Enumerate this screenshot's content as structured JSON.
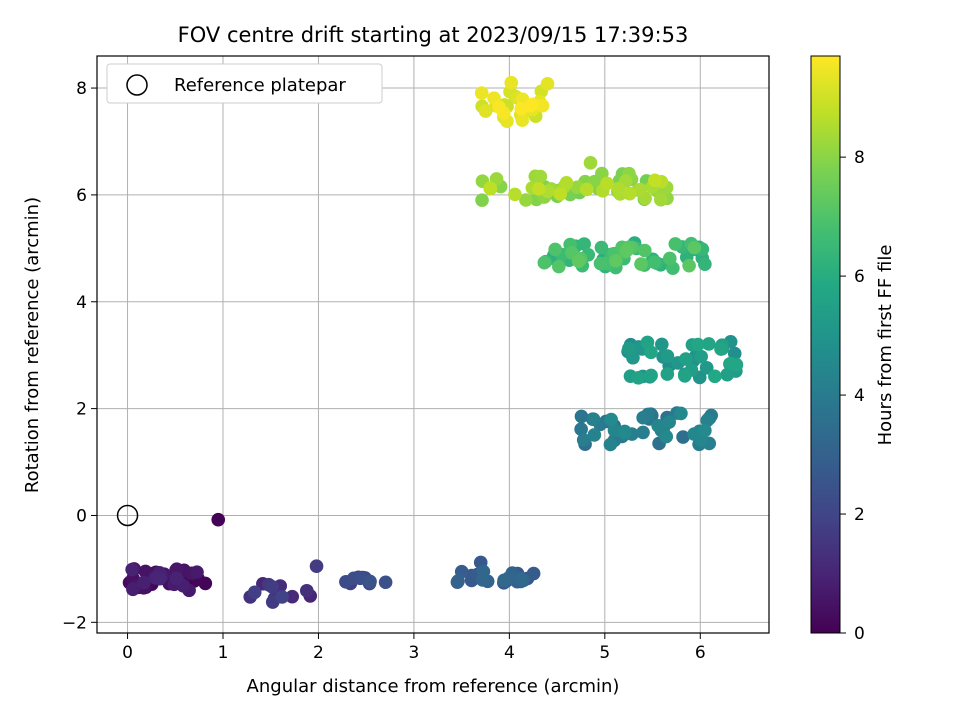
{
  "chart_data": {
    "type": "scatter",
    "title": "FOV centre drift starting at 2023/09/15 17:39:53",
    "xlabel": "Angular distance from reference (arcmin)",
    "ylabel": "Rotation from reference (arcmin)",
    "xlim": [
      -0.32,
      6.72
    ],
    "ylim": [
      -2.2,
      8.6
    ],
    "xticks": [
      0,
      1,
      2,
      3,
      4,
      5,
      6
    ],
    "yticks": [
      -2,
      0,
      2,
      4,
      6,
      8
    ],
    "grid": true,
    "legend": {
      "position": "top-left",
      "entries": [
        "Reference platepar"
      ]
    },
    "reference_point": {
      "x": 0,
      "y": 0,
      "label": "Reference platepar"
    },
    "colorbar": {
      "label": "Hours from first FF file",
      "colormap": "viridis",
      "range": [
        0,
        9.7
      ],
      "ticks": [
        0,
        2,
        4,
        6,
        8
      ]
    },
    "clusters": [
      {
        "x_center": 0.45,
        "y_center": -1.2,
        "x_spread": 0.45,
        "y_spread": 0.22,
        "hour_start": 0.0,
        "hour_end": 1.0,
        "n": 38
      },
      {
        "x_center": 1.6,
        "y_center": -1.45,
        "x_spread": 0.4,
        "y_spread": 0.18,
        "hour_start": 1.0,
        "hour_end": 1.9,
        "n": 12
      },
      {
        "x_center": 2.6,
        "y_center": -1.22,
        "x_spread": 0.35,
        "y_spread": 0.08,
        "hour_start": 1.8,
        "hour_end": 2.5,
        "n": 10
      },
      {
        "x_center": 3.9,
        "y_center": -1.15,
        "x_spread": 0.5,
        "y_spread": 0.12,
        "hour_start": 2.6,
        "hour_end": 3.3,
        "n": 22
      },
      {
        "x_center": 5.4,
        "y_center": 1.62,
        "x_spread": 0.75,
        "y_spread": 0.3,
        "hour_start": 3.5,
        "hour_end": 4.6,
        "n": 45
      },
      {
        "x_center": 5.8,
        "y_center": 2.9,
        "x_spread": 0.6,
        "y_spread": 0.35,
        "hour_start": 4.7,
        "hour_end": 5.8,
        "n": 45
      },
      {
        "x_center": 5.2,
        "y_center": 4.85,
        "x_spread": 0.85,
        "y_spread": 0.25,
        "hour_start": 6.0,
        "hour_end": 7.3,
        "n": 55
      },
      {
        "x_center": 4.7,
        "y_center": 6.15,
        "x_spread": 1.0,
        "y_spread": 0.25,
        "hour_start": 7.6,
        "hour_end": 8.8,
        "n": 55
      },
      {
        "x_center": 3.95,
        "y_center": 7.65,
        "x_spread": 0.4,
        "y_spread": 0.3,
        "hour_start": 8.9,
        "hour_end": 9.7,
        "n": 28
      }
    ],
    "outliers": [
      {
        "x": 0.95,
        "y": -0.08,
        "hour": 0.05
      },
      {
        "x": 1.98,
        "y": -0.95,
        "hour": 1.7
      },
      {
        "x": 3.7,
        "y": -0.88,
        "hour": 2.7
      },
      {
        "x": 4.85,
        "y": 6.6,
        "hour": 8.3
      },
      {
        "x": 4.4,
        "y": 8.08,
        "hour": 9.3
      },
      {
        "x": 4.02,
        "y": 8.1,
        "hour": 9.4
      }
    ]
  }
}
